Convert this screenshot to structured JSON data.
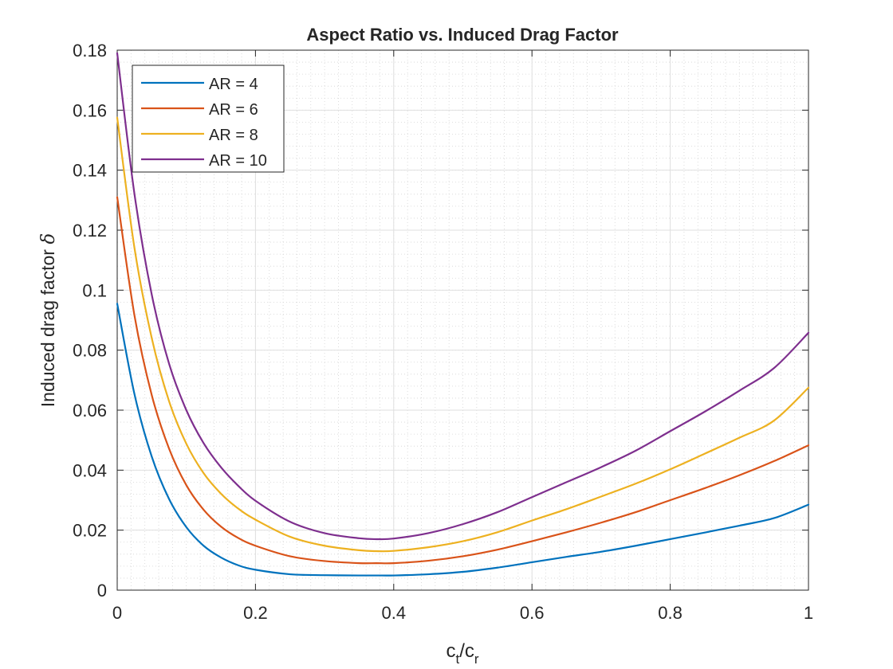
{
  "chart_data": {
    "type": "line",
    "title": "Aspect Ratio vs. Induced Drag Factor",
    "xlabel": {
      "base": "c",
      "sub1": "t",
      "mid": "/c",
      "sub2": "r"
    },
    "ylabel": {
      "text": "Induced drag factor ",
      "symbol": "δ"
    },
    "xlim": [
      0,
      1
    ],
    "ylim": [
      0,
      0.18
    ],
    "xticks": [
      0,
      0.2,
      0.4,
      0.6,
      0.8,
      1
    ],
    "xtick_labels": [
      "0",
      "0.2",
      "0.4",
      "0.6",
      "0.8",
      "1"
    ],
    "yticks": [
      0,
      0.02,
      0.04,
      0.06,
      0.08,
      0.1,
      0.12,
      0.14,
      0.16,
      0.18
    ],
    "ytick_labels": [
      "0",
      "0.02",
      "0.04",
      "0.06",
      "0.08",
      "0.1",
      "0.12",
      "0.14",
      "0.16",
      "0.18"
    ],
    "grid": true,
    "minor_grid": true,
    "legend_position": "top-left",
    "series": [
      {
        "name": "AR = 4",
        "color": "#0072BD",
        "x": [
          0,
          0.025,
          0.05,
          0.075,
          0.1,
          0.125,
          0.15,
          0.175,
          0.2,
          0.25,
          0.3,
          0.35,
          0.383,
          0.4,
          0.45,
          0.5,
          0.55,
          0.6,
          0.65,
          0.7,
          0.75,
          0.8,
          0.85,
          0.9,
          0.95,
          1.0
        ],
        "y": [
          0.0955,
          0.0653,
          0.0445,
          0.0304,
          0.021,
          0.0148,
          0.0109,
          0.0083,
          0.0068,
          0.0053,
          0.005,
          0.0049,
          0.0049,
          0.0049,
          0.0053,
          0.0061,
          0.0075,
          0.0093,
          0.0111,
          0.0128,
          0.0148,
          0.017,
          0.0192,
          0.0215,
          0.024,
          0.0285
        ]
      },
      {
        "name": "AR = 6",
        "color": "#D95319",
        "x": [
          0,
          0.025,
          0.05,
          0.075,
          0.1,
          0.125,
          0.15,
          0.175,
          0.2,
          0.25,
          0.3,
          0.35,
          0.375,
          0.4,
          0.45,
          0.5,
          0.55,
          0.6,
          0.65,
          0.7,
          0.75,
          0.8,
          0.85,
          0.9,
          0.95,
          1.0
        ],
        "y": [
          0.131,
          0.0915,
          0.065,
          0.0472,
          0.035,
          0.0268,
          0.0212,
          0.0174,
          0.0148,
          0.0113,
          0.0097,
          0.009,
          0.009,
          0.009,
          0.0098,
          0.0113,
          0.0135,
          0.0163,
          0.0193,
          0.0225,
          0.026,
          0.03,
          0.034,
          0.0383,
          0.043,
          0.0483
        ]
      },
      {
        "name": "AR = 8",
        "color": "#EDB120",
        "x": [
          0,
          0.025,
          0.05,
          0.075,
          0.1,
          0.125,
          0.15,
          0.175,
          0.2,
          0.25,
          0.3,
          0.35,
          0.375,
          0.4,
          0.45,
          0.5,
          0.55,
          0.6,
          0.65,
          0.7,
          0.75,
          0.8,
          0.85,
          0.9,
          0.95,
          1.0
        ],
        "y": [
          0.1575,
          0.114,
          0.084,
          0.063,
          0.0488,
          0.039,
          0.0322,
          0.0272,
          0.0235,
          0.0178,
          0.0148,
          0.0133,
          0.013,
          0.0131,
          0.0143,
          0.0163,
          0.0193,
          0.0232,
          0.027,
          0.0312,
          0.0355,
          0.0403,
          0.0455,
          0.0508,
          0.0565,
          0.0675
        ]
      },
      {
        "name": "AR = 10",
        "color": "#7E2F8E",
        "x": [
          0,
          0.025,
          0.05,
          0.075,
          0.1,
          0.125,
          0.15,
          0.175,
          0.2,
          0.25,
          0.3,
          0.35,
          0.375,
          0.4,
          0.45,
          0.5,
          0.55,
          0.6,
          0.65,
          0.7,
          0.75,
          0.8,
          0.85,
          0.9,
          0.95,
          1.0
        ],
        "y": [
          0.179,
          0.132,
          0.0985,
          0.0755,
          0.06,
          0.049,
          0.041,
          0.0348,
          0.0298,
          0.0228,
          0.019,
          0.0173,
          0.017,
          0.0172,
          0.019,
          0.022,
          0.026,
          0.031,
          0.036,
          0.041,
          0.0465,
          0.053,
          0.0595,
          0.0665,
          0.074,
          0.0858
        ]
      }
    ]
  }
}
